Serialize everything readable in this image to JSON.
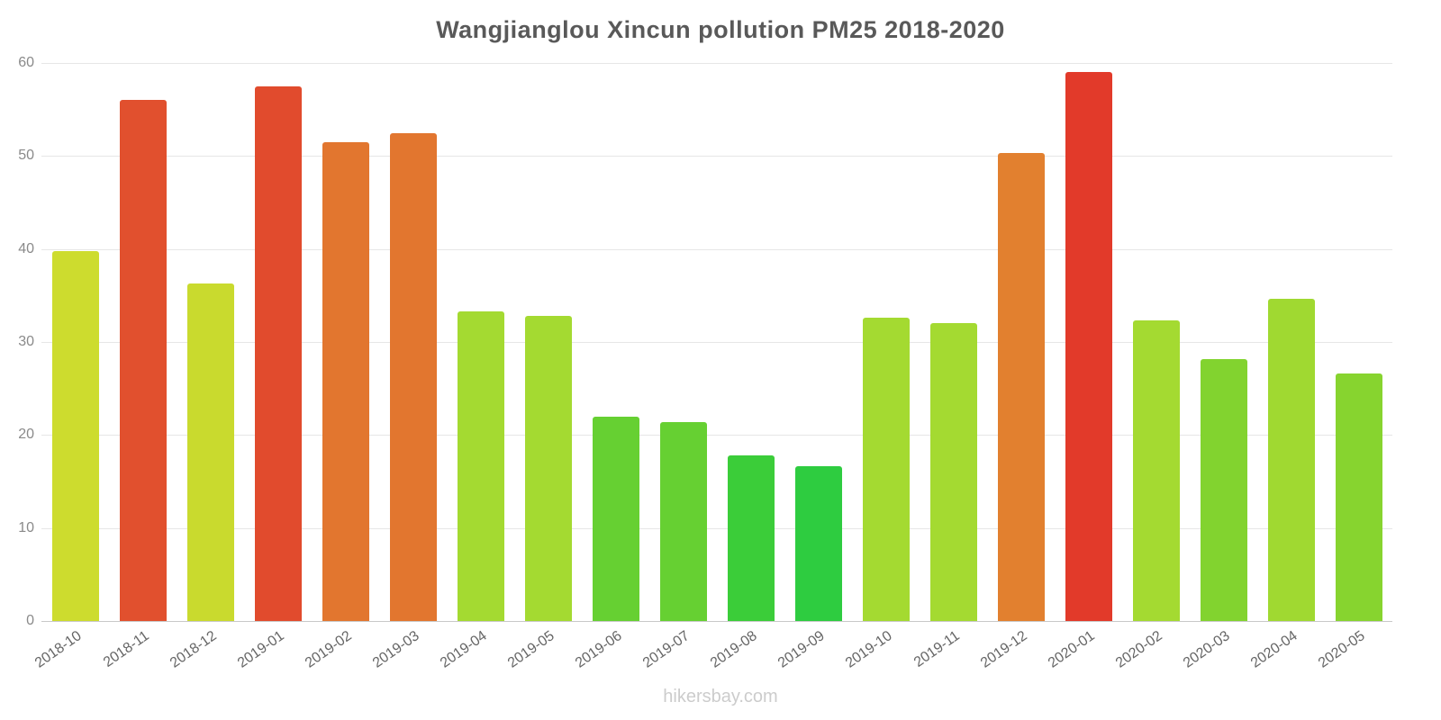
{
  "title": "Wangjianglou Xincun pollution PM25 2018-2020",
  "watermark": "hikersbay.com",
  "chart_data": {
    "type": "bar",
    "title": "Wangjianglou Xincun pollution PM25 2018-2020",
    "xlabel": "",
    "ylabel": "",
    "ylim": [
      0,
      60
    ],
    "yticks": [
      0,
      10,
      20,
      30,
      40,
      50,
      60
    ],
    "grid": "horizontal",
    "legend": "none",
    "categories": [
      "2018-10",
      "2018-11",
      "2018-12",
      "2019-01",
      "2019-02",
      "2019-03",
      "2019-04",
      "2019-05",
      "2019-06",
      "2019-07",
      "2019-08",
      "2019-09",
      "2019-10",
      "2019-11",
      "2019-12",
      "2020-01",
      "2020-02",
      "2020-03",
      "2020-04",
      "2020-05"
    ],
    "values": [
      39.8,
      56.0,
      36.3,
      57.5,
      51.5,
      52.5,
      33.3,
      32.8,
      22.0,
      21.4,
      17.8,
      16.6,
      32.6,
      32.0,
      50.3,
      59.0,
      32.3,
      28.2,
      34.6,
      26.6
    ],
    "bar_colors": [
      "#cddc2e",
      "#e1502e",
      "#c9da2e",
      "#e14b2d",
      "#e2762f",
      "#e2762f",
      "#a4da31",
      "#a4da31",
      "#66d032",
      "#66d032",
      "#3bcd39",
      "#2ecc40",
      "#a4da31",
      "#a4da31",
      "#e2802f",
      "#e23a2a",
      "#a4da31",
      "#82d32f",
      "#a0d931",
      "#87d42f"
    ]
  },
  "colors": {
    "title": "#595959",
    "axis_label": "#8a8a8a",
    "tick_label": "#666666",
    "gridline": "#e6e6e6",
    "axis_line": "#c9c9c9",
    "watermark": "#cccccc"
  }
}
